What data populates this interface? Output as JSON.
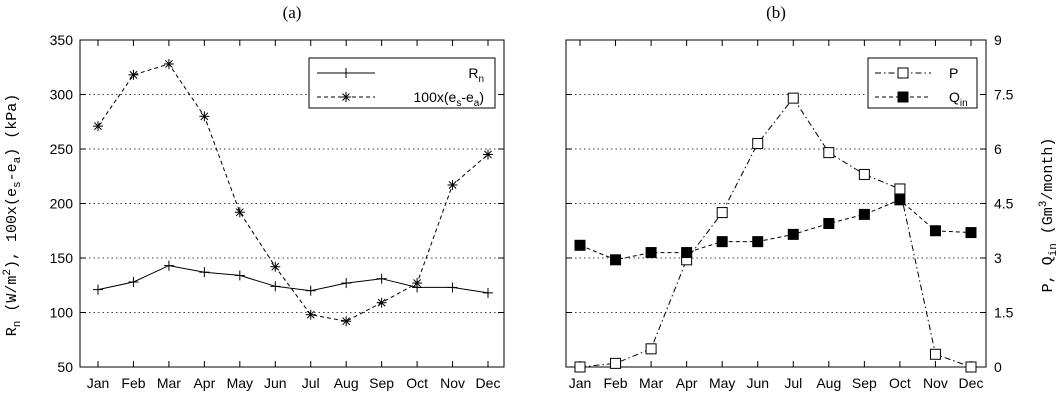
{
  "chart_data": [
    {
      "type": "line",
      "title": "(a)",
      "ylabel": "R_n (W/m^2), 100x(e_s-e_a) (kPa)",
      "ylim": [
        50,
        350
      ],
      "yticks": [
        50,
        100,
        150,
        200,
        250,
        300,
        350
      ],
      "grid": "horizontal dotted",
      "legend_position": "top-right",
      "categories": [
        "Jan",
        "Feb",
        "Mar",
        "Apr",
        "May",
        "Jun",
        "Jul",
        "Aug",
        "Sep",
        "Oct",
        "Nov",
        "Dec"
      ],
      "series": [
        {
          "name": "R_n",
          "marker": "plus",
          "dash": "solid",
          "values": [
            121,
            128,
            143,
            137,
            134,
            124,
            120,
            127,
            131,
            123,
            123,
            118
          ]
        },
        {
          "name": "100x(e_s-e_a)",
          "marker": "asterisk",
          "dash": "dashed",
          "values": [
            271,
            318,
            328,
            280,
            192,
            142,
            98,
            92,
            109,
            127,
            217,
            245
          ]
        }
      ]
    },
    {
      "type": "line",
      "title": "(b)",
      "ylabel": "P, Q_in (Gm^3/month)",
      "ylim": [
        0,
        9
      ],
      "yticks": [
        0,
        1.5,
        3,
        4.5,
        6,
        7.5,
        9
      ],
      "grid": "horizontal dotted",
      "legend_position": "top-right",
      "categories": [
        "Jan",
        "Feb",
        "Mar",
        "Apr",
        "May",
        "Jun",
        "Jul",
        "Aug",
        "Sep",
        "Oct",
        "Nov",
        "Dec"
      ],
      "series": [
        {
          "name": "P",
          "marker": "open-square",
          "dash": "dash-dot",
          "values": [
            0.0,
            0.1,
            0.5,
            2.95,
            4.25,
            6.15,
            7.4,
            5.9,
            5.3,
            4.9,
            0.35,
            0.0
          ]
        },
        {
          "name": "Q_in",
          "marker": "filled-square",
          "dash": "dashed",
          "values": [
            3.35,
            2.95,
            3.15,
            3.15,
            3.45,
            3.45,
            3.65,
            3.95,
            4.2,
            4.6,
            3.75,
            3.7
          ]
        }
      ]
    }
  ]
}
